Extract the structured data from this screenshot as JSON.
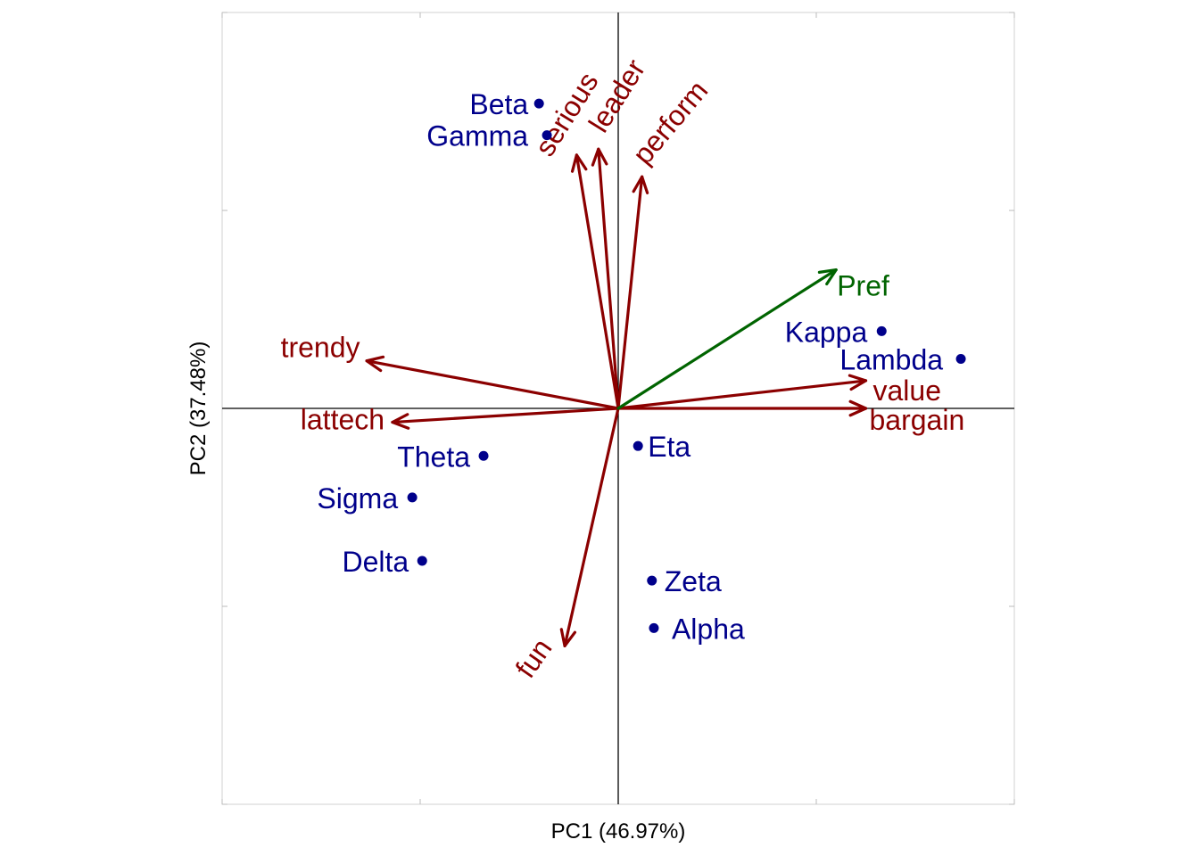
{
  "chart_data": {
    "type": "scatter",
    "subtype": "biplot",
    "xlabel": "PC1 (46.97%)",
    "ylabel": "PC2 (37.48%)",
    "xlim": [
      -1.0,
      1.0
    ],
    "ylim": [
      -1.0,
      1.0
    ],
    "grid": false,
    "reference_lines": "x=0 and y=0",
    "colors": {
      "points": "#00008B",
      "attributes": "#8B0000",
      "preference": "#006400"
    },
    "points": [
      {
        "label": "Beta",
        "x": -0.2,
        "y": 0.77
      },
      {
        "label": "Gamma",
        "x": -0.18,
        "y": 0.69
      },
      {
        "label": "Kappa",
        "x": 0.665,
        "y": 0.195
      },
      {
        "label": "Lambda",
        "x": 0.865,
        "y": 0.125
      },
      {
        "label": "Eta",
        "x": 0.05,
        "y": -0.095
      },
      {
        "label": "Theta",
        "x": -0.34,
        "y": -0.12
      },
      {
        "label": "Sigma",
        "x": -0.52,
        "y": -0.225
      },
      {
        "label": "Delta",
        "x": -0.495,
        "y": -0.385
      },
      {
        "label": "Zeta",
        "x": 0.085,
        "y": -0.435
      },
      {
        "label": "Alpha",
        "x": 0.09,
        "y": -0.555
      }
    ],
    "attributes": [
      {
        "label": "serious",
        "x": -0.105,
        "y": 0.64
      },
      {
        "label": "leader",
        "x": -0.05,
        "y": 0.655
      },
      {
        "label": "perform",
        "x": 0.06,
        "y": 0.585
      },
      {
        "label": "trendy",
        "x": -0.635,
        "y": 0.12
      },
      {
        "label": "lattech",
        "x": -0.57,
        "y": -0.035
      },
      {
        "label": "value",
        "x": 0.625,
        "y": 0.07
      },
      {
        "label": "bargain",
        "x": 0.625,
        "y": 0.0
      },
      {
        "label": "fun",
        "x": -0.135,
        "y": -0.6
      }
    ],
    "preference": {
      "label": "Pref",
      "x": 0.55,
      "y": 0.35
    }
  }
}
